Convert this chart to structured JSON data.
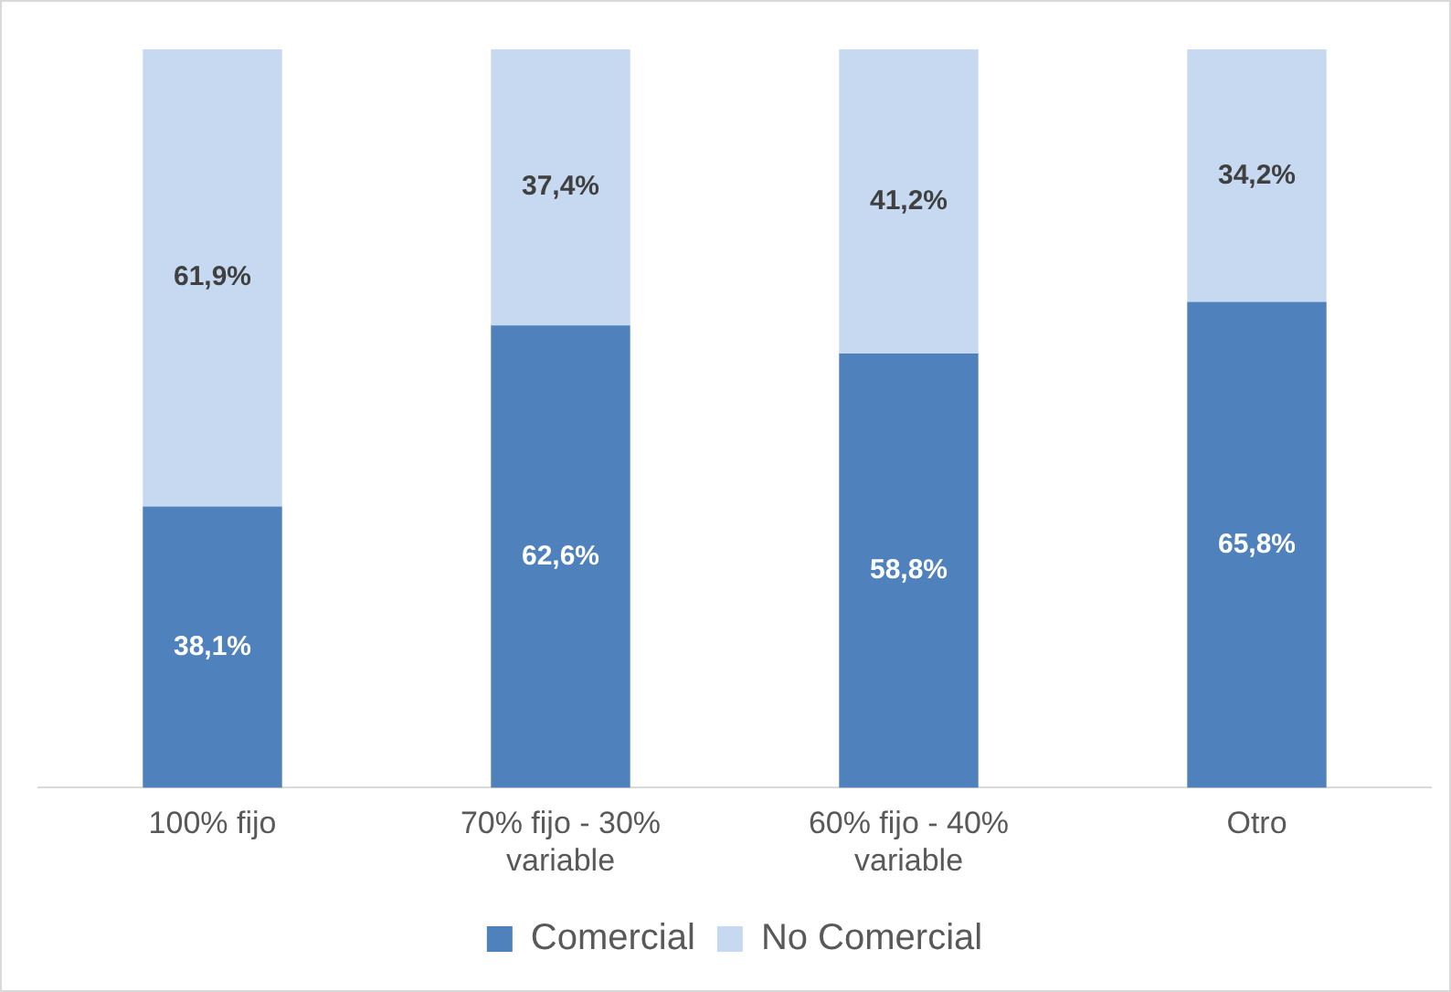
{
  "chart_data": {
    "type": "bar",
    "stacked": true,
    "categories": [
      "100% fijo",
      "70% fijo - 30% variable",
      "60% fijo - 40% variable",
      "Otro"
    ],
    "series": [
      {
        "name": "Comercial",
        "color": "#4f81bd",
        "values": [
          38.1,
          62.6,
          58.8,
          65.8
        ],
        "value_labels": [
          "38,1%",
          "62,6%",
          "58,8%",
          "65,8%"
        ]
      },
      {
        "name": "No Comercial",
        "color": "#c6d9f1",
        "values": [
          61.9,
          37.4,
          41.2,
          34.2
        ],
        "value_labels": [
          "61,9%",
          "37,4%",
          "41,2%",
          "34,2%"
        ]
      }
    ],
    "legend": "bottom",
    "grid": false
  }
}
